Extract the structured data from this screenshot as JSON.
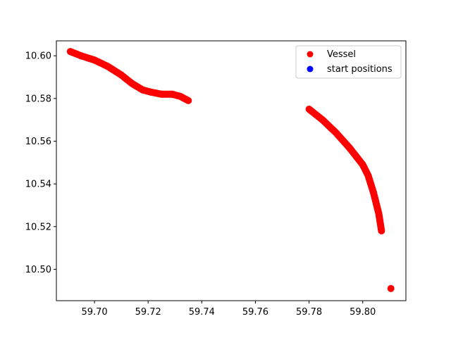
{
  "chart_data": {
    "type": "scatter",
    "title": "",
    "xlabel": "",
    "ylabel": "",
    "xlim": [
      59.6858,
      59.8161
    ],
    "ylim": [
      10.4853,
      10.607
    ],
    "grid": false,
    "legend_position": "upper right",
    "x_ticks": [
      "59.70",
      "59.72",
      "59.74",
      "59.76",
      "59.78",
      "59.80"
    ],
    "y_ticks": [
      "10.50",
      "10.52",
      "10.54",
      "10.56",
      "10.58",
      "10.60"
    ],
    "series": [
      {
        "name": "Vessel",
        "color": "#ff0000",
        "segments": [
          [
            [
              59.691,
              10.602
            ],
            [
              59.695,
              10.6
            ],
            [
              59.7,
              10.598
            ],
            [
              59.705,
              10.595
            ],
            [
              59.71,
              10.591
            ],
            [
              59.714,
              10.587
            ],
            [
              59.718,
              10.584
            ],
            [
              59.721,
              10.583
            ],
            [
              59.725,
              10.582
            ],
            [
              59.729,
              10.582
            ],
            [
              59.732,
              10.581
            ],
            [
              59.735,
              10.579
            ]
          ],
          [
            [
              59.78,
              10.575
            ],
            [
              59.785,
              10.57
            ],
            [
              59.79,
              10.564
            ],
            [
              59.795,
              10.557
            ],
            [
              59.8,
              10.549
            ],
            [
              59.802,
              10.544
            ],
            [
              59.804,
              10.536
            ],
            [
              59.806,
              10.526
            ],
            [
              59.807,
              10.518
            ]
          ],
          [
            [
              59.8105,
              10.491
            ]
          ]
        ]
      },
      {
        "name": "start positions",
        "color": "#0000ff",
        "segments": []
      }
    ]
  }
}
